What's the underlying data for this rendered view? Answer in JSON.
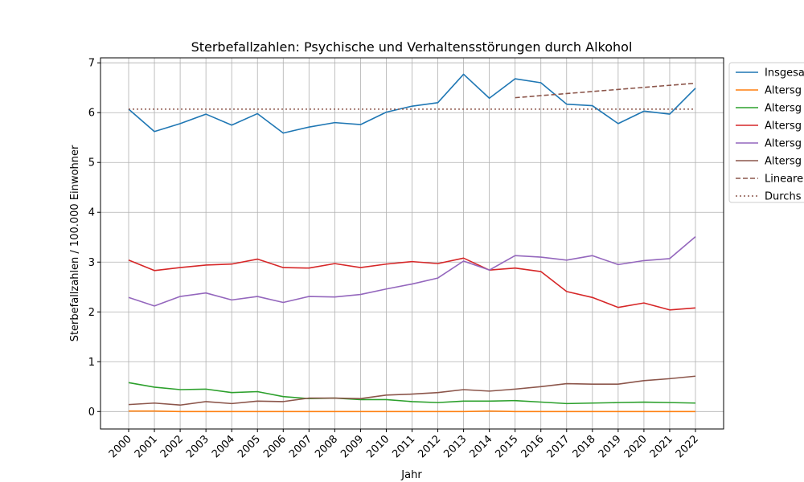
{
  "chart_data": {
    "type": "line",
    "title": "Sterbefallzahlen: Psychische und Verhaltensstörungen durch Alkohol",
    "xlabel": "Jahr",
    "ylabel": "Sterbefallzahlen / 100.000 Einwohner",
    "x": [
      "2000",
      "2001",
      "2002",
      "2003",
      "2004",
      "2005",
      "2006",
      "2007",
      "2008",
      "2009",
      "2010",
      "2011",
      "2012",
      "2013",
      "2014",
      "2015",
      "2016",
      "2017",
      "2018",
      "2019",
      "2020",
      "2021",
      "2022"
    ],
    "ylim": [
      -0.35,
      7.1
    ],
    "yticks": [
      0,
      1,
      2,
      3,
      4,
      5,
      6,
      7
    ],
    "grid": true,
    "legend_position": "outside-right",
    "series": [
      {
        "name": "Insgesa",
        "color": "#1f77b4",
        "style": "solid",
        "values": [
          6.07,
          5.62,
          5.78,
          5.97,
          5.75,
          5.98,
          5.59,
          5.71,
          5.8,
          5.76,
          6.01,
          6.13,
          6.2,
          6.77,
          6.29,
          6.68,
          6.6,
          6.17,
          6.14,
          5.78,
          6.03,
          5.97,
          6.49
        ]
      },
      {
        "name": "Altersg",
        "color": "#ff7f0e",
        "style": "solid",
        "values": [
          0.01,
          0.01,
          0.0,
          0.0,
          0.0,
          0.0,
          0.0,
          0.0,
          0.0,
          0.0,
          0.0,
          0.0,
          0.0,
          0.0,
          0.01,
          0.0,
          0.0,
          0.0,
          0.0,
          0.0,
          0.0,
          0.0,
          0.0
        ]
      },
      {
        "name": "Altersg",
        "color": "#2ca02c",
        "style": "solid",
        "values": [
          0.58,
          0.49,
          0.44,
          0.45,
          0.38,
          0.4,
          0.3,
          0.26,
          0.27,
          0.24,
          0.24,
          0.2,
          0.18,
          0.21,
          0.21,
          0.22,
          0.19,
          0.16,
          0.17,
          0.18,
          0.19,
          0.18,
          0.17
        ]
      },
      {
        "name": "Altersg",
        "color": "#d62728",
        "style": "solid",
        "values": [
          3.04,
          2.83,
          2.89,
          2.94,
          2.96,
          3.06,
          2.89,
          2.88,
          2.97,
          2.89,
          2.96,
          3.01,
          2.97,
          3.08,
          2.84,
          2.88,
          2.81,
          2.41,
          2.29,
          2.09,
          2.18,
          2.04,
          2.08
        ]
      },
      {
        "name": "Altersg",
        "color": "#9467bd",
        "style": "solid",
        "values": [
          2.29,
          2.12,
          2.31,
          2.38,
          2.24,
          2.31,
          2.19,
          2.31,
          2.3,
          2.35,
          2.46,
          2.56,
          2.68,
          3.02,
          2.84,
          3.13,
          3.1,
          3.04,
          3.13,
          2.95,
          3.03,
          3.07,
          3.51
        ]
      },
      {
        "name": "Altersg",
        "color": "#8c564b",
        "style": "solid",
        "values": [
          0.14,
          0.17,
          0.13,
          0.2,
          0.16,
          0.21,
          0.2,
          0.27,
          0.27,
          0.26,
          0.33,
          0.35,
          0.38,
          0.44,
          0.41,
          0.45,
          0.5,
          0.56,
          0.55,
          0.55,
          0.62,
          0.66,
          0.71
        ]
      },
      {
        "name": "Lineare",
        "color": "#8c564b",
        "style": "dashed",
        "x_start": "2015",
        "x_end": "2022",
        "y_start": 6.3,
        "y_end": 6.59
      },
      {
        "name": "Durchs",
        "color": "#8c564b",
        "style": "dotted",
        "x_start": "2000",
        "x_end": "2022",
        "y_start": 6.07,
        "y_end": 6.07
      }
    ]
  }
}
